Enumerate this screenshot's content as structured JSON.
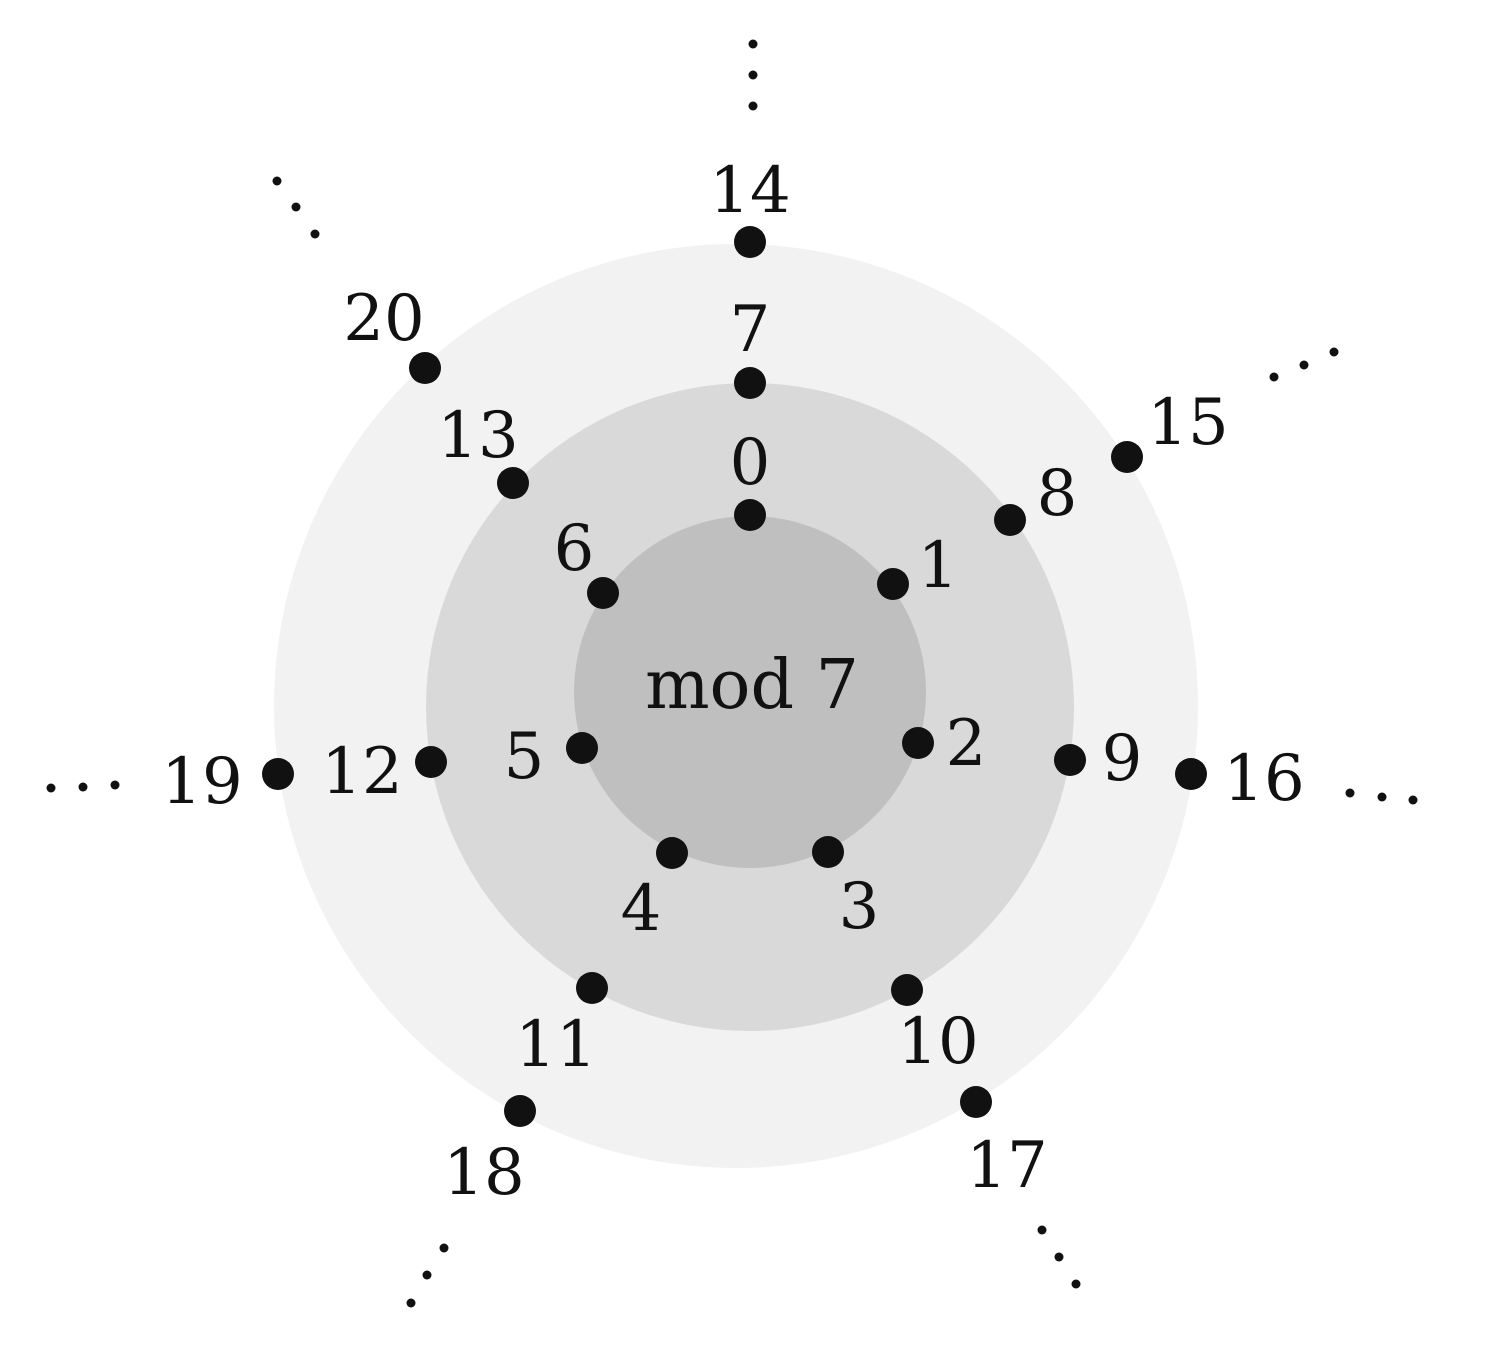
{
  "diagram": {
    "center_label": "mod 7",
    "colors": {
      "background": "#ffffff",
      "ring_outer": "#f2f2f2",
      "ring_middle": "#d9d9d9",
      "ring_inner": "#bfbfbf",
      "dot": "#111111"
    },
    "ellipsis": "...",
    "rings": [
      {
        "level": 1,
        "numbers": [
          "0",
          "1",
          "2",
          "3",
          "4",
          "5",
          "6"
        ]
      },
      {
        "level": 2,
        "numbers": [
          "7",
          "8",
          "9",
          "10",
          "11",
          "12",
          "13"
        ]
      },
      {
        "level": 3,
        "numbers": [
          "14",
          "15",
          "16",
          "17",
          "18",
          "19",
          "20"
        ]
      }
    ]
  }
}
